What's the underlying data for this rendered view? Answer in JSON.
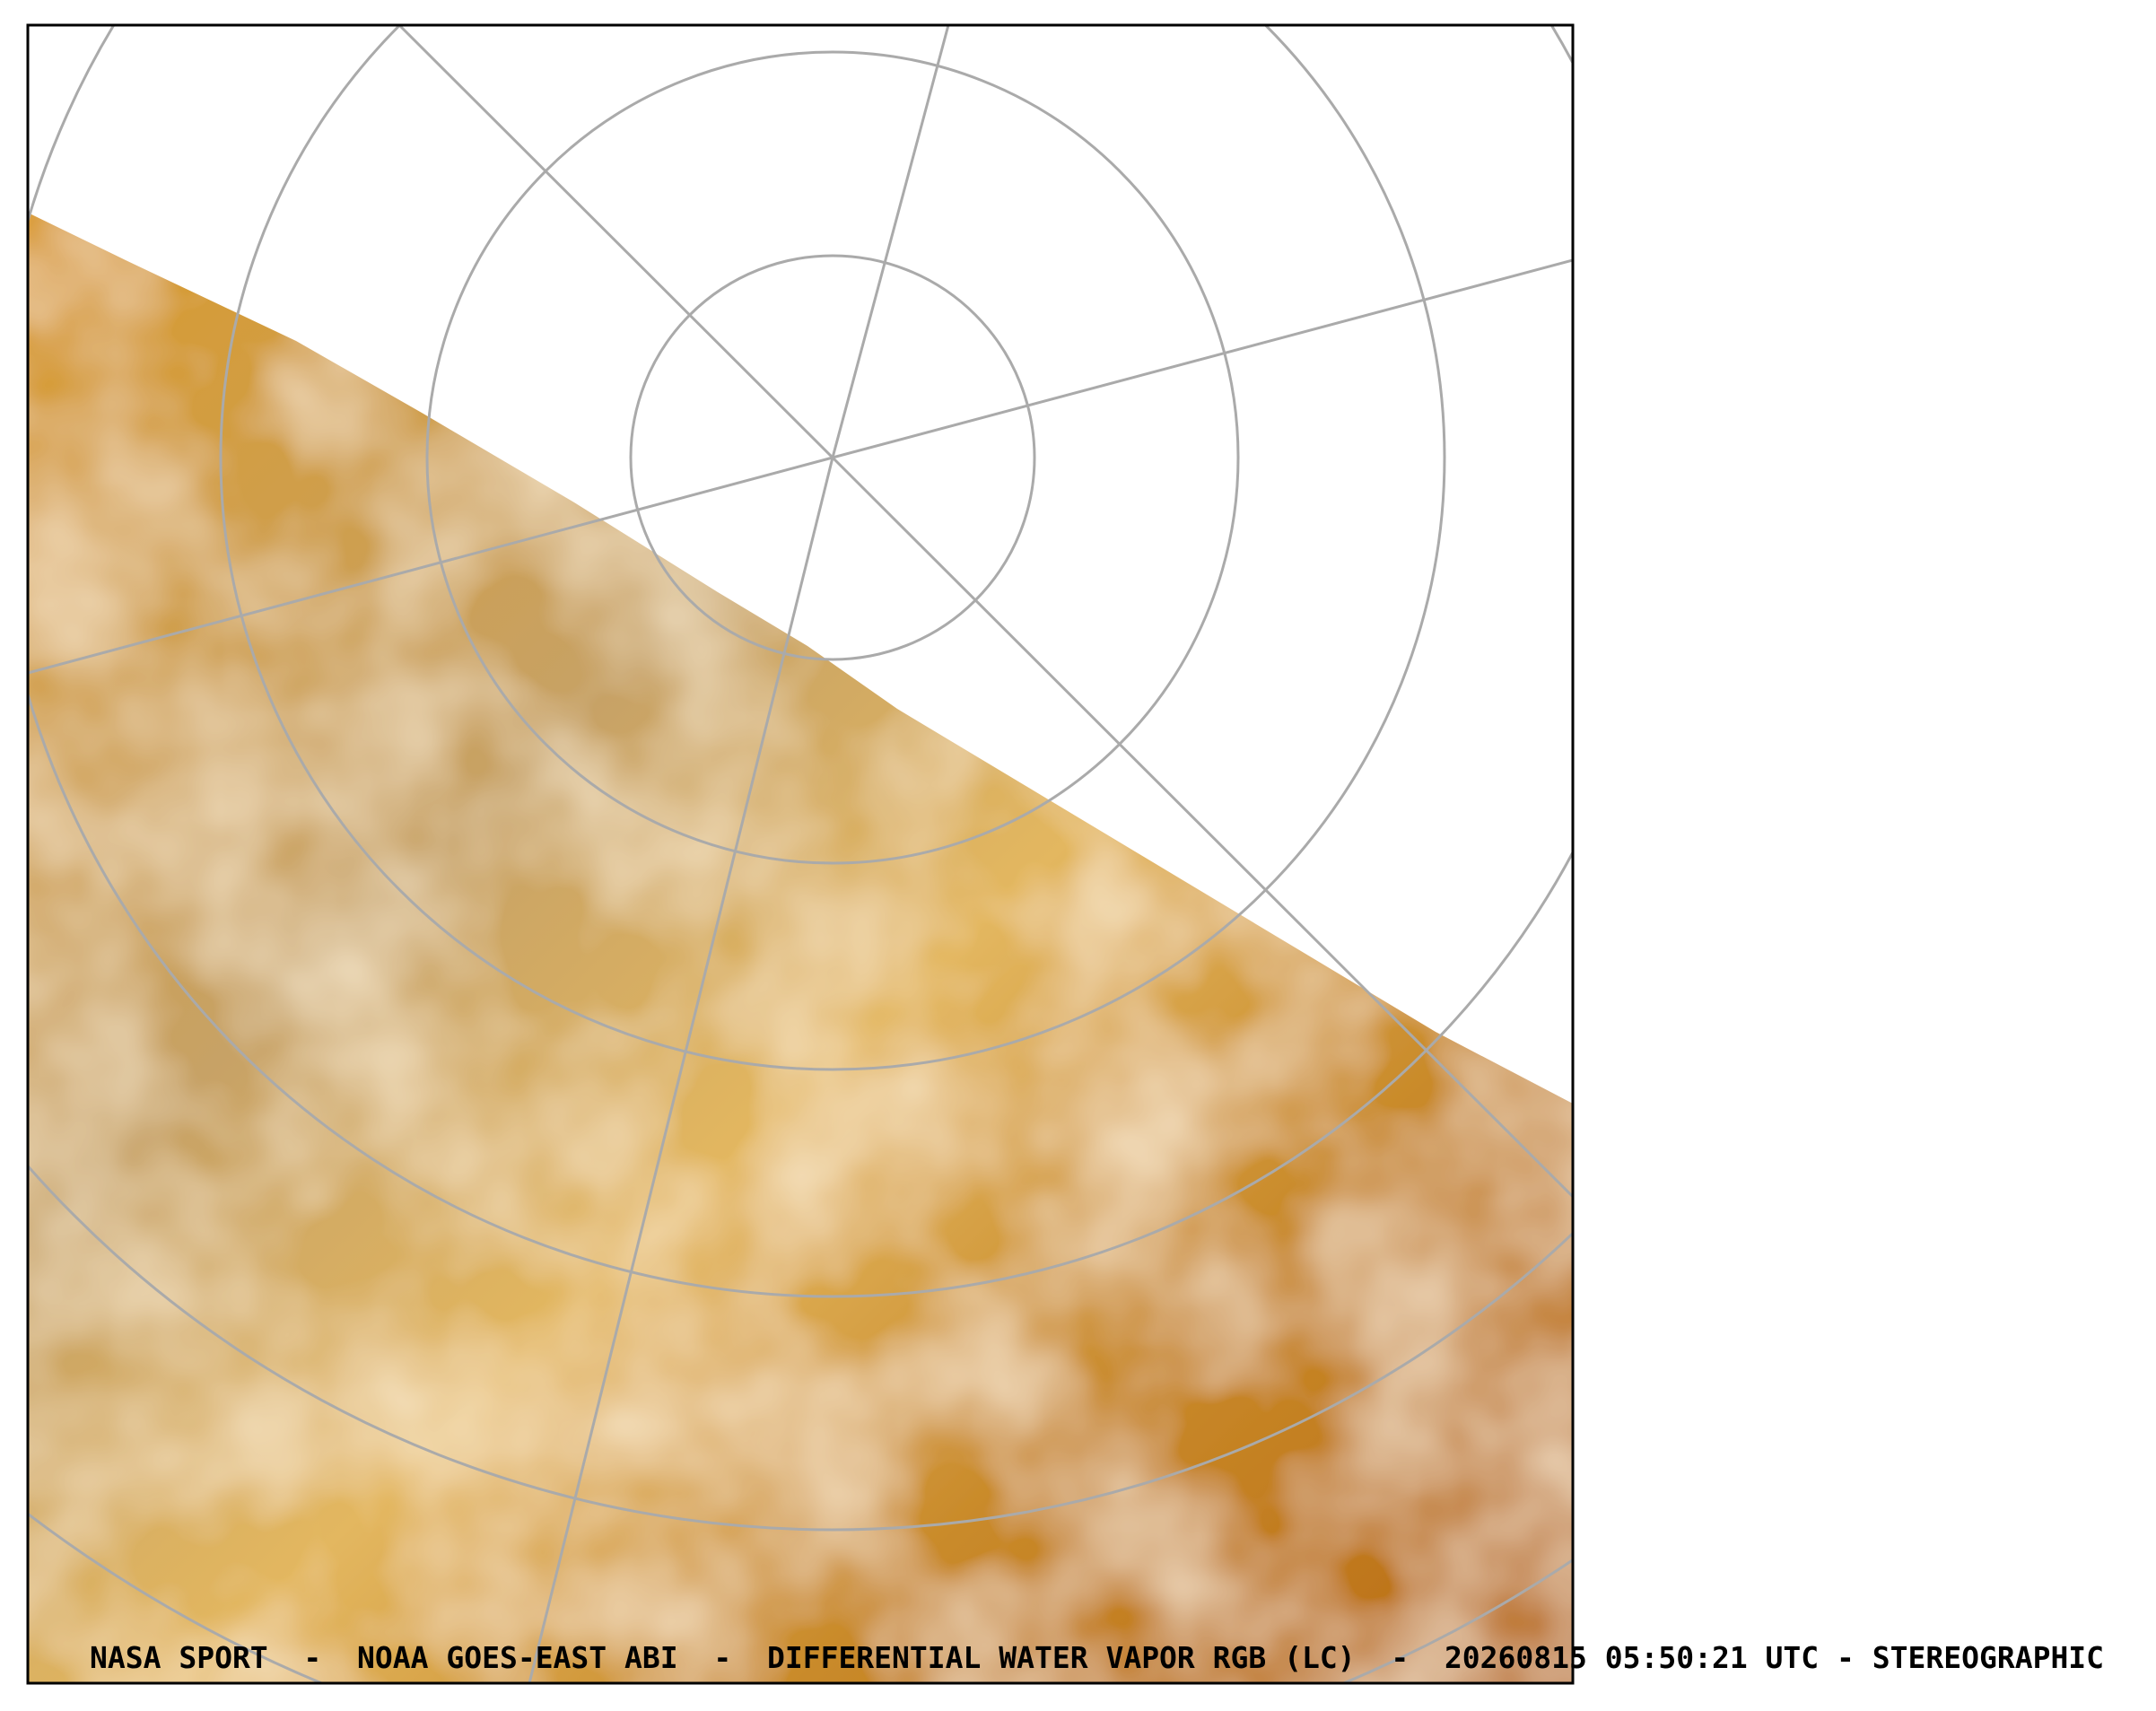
{
  "caption": "NASA SPORT  -  NOAA GOES-EAST ABI  -  DIFFERENTIAL WATER VAPOR RGB (LC)  -  20260815 05:50:21 UTC - STEREOGRAPHIC"
}
